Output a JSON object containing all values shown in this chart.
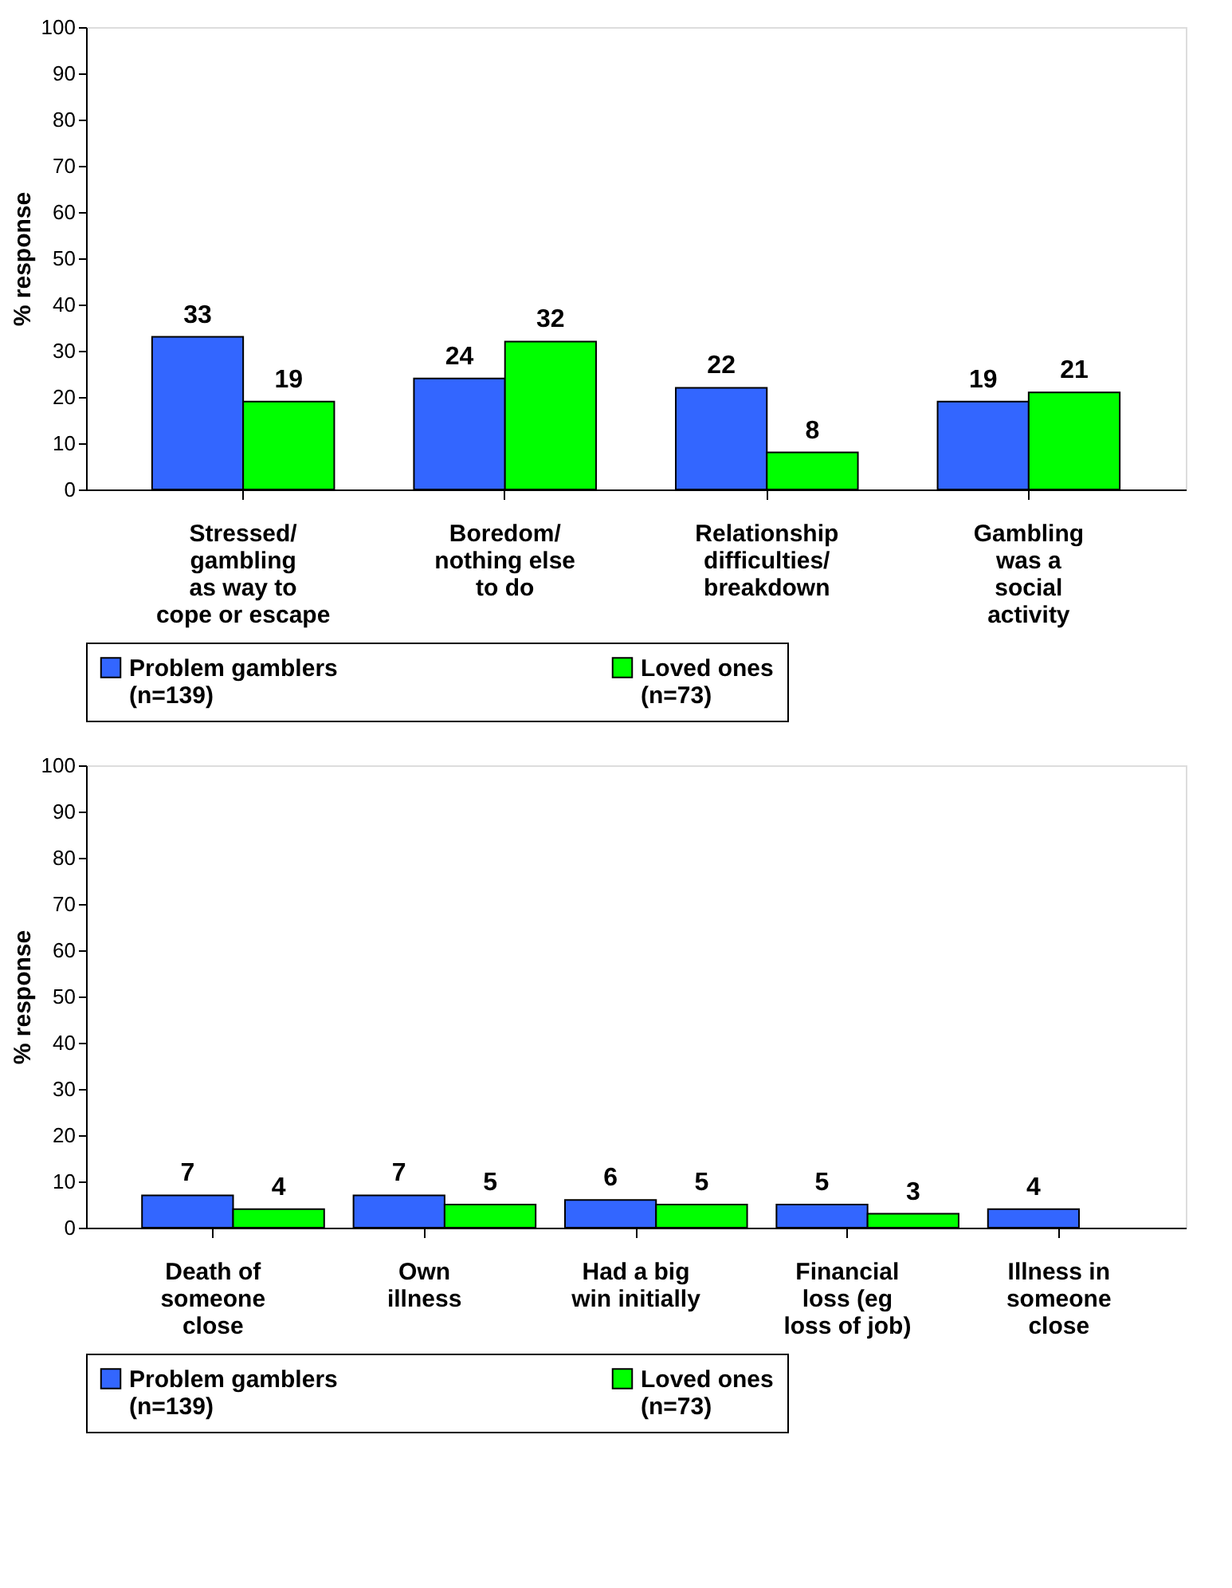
{
  "chart_data": [
    {
      "type": "bar",
      "ylabel": "% response",
      "categories": [
        "Stressed/\ngambling\nas way to\ncope or escape",
        "Boredom/\nnothing else\nto do",
        "Relationship\ndifficulties/\nbreakdown",
        "Gambling\nwas a\nsocial\nactivity"
      ],
      "series": [
        {
          "name": "Problem gamblers\n(n=139)",
          "color": "#3366ff",
          "values": [
            33,
            24,
            22,
            19
          ]
        },
        {
          "name": "Loved ones\n(n=73)",
          "color": "#00ff00",
          "values": [
            19,
            32,
            8,
            21
          ]
        }
      ],
      "ylim": [
        0,
        100
      ],
      "yticks": [
        0,
        10,
        20,
        30,
        40,
        50,
        60,
        70,
        80,
        90,
        100
      ],
      "data_labels": true,
      "legend": "bottom",
      "grid": false
    },
    {
      "type": "bar",
      "ylabel": "% response",
      "categories": [
        "Death of\nsomeone\nclose",
        "Own\nillness",
        "Had a big\nwin initially",
        "Financial\nloss (eg\nloss of job)",
        "Illness in\nsomeone\nclose"
      ],
      "series": [
        {
          "name": "Problem gamblers\n(n=139)",
          "color": "#3366ff",
          "values": [
            7,
            7,
            6,
            5,
            4
          ]
        },
        {
          "name": "Loved ones\n(n=73)",
          "color": "#00ff00",
          "values": [
            4,
            5,
            5,
            3,
            null
          ]
        }
      ],
      "ylim": [
        0,
        100
      ],
      "yticks": [
        0,
        10,
        20,
        30,
        40,
        50,
        60,
        70,
        80,
        90,
        100
      ],
      "data_labels": true,
      "legend": "bottom",
      "grid": false
    }
  ]
}
